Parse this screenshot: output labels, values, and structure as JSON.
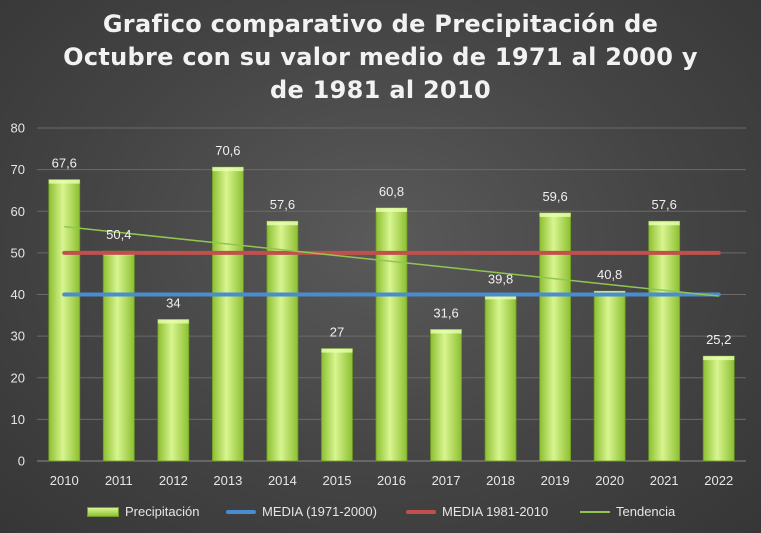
{
  "chart_data": {
    "type": "bar",
    "title_lines": [
      "Grafico comparativo de Precipitación de",
      "Octubre con su valor medio de 1971 al 2000 y",
      "de 1981 al 2010"
    ],
    "categories": [
      "2010",
      "2011",
      "2012",
      "2013",
      "2014",
      "2015",
      "2016",
      "2017",
      "2018",
      "2019",
      "2020",
      "2021",
      "2022"
    ],
    "series": [
      {
        "name": "Precipitación",
        "type": "bar",
        "values": [
          67.6,
          50.4,
          34,
          70.6,
          57.6,
          27,
          60.8,
          31.6,
          39.8,
          59.6,
          40.8,
          57.6,
          25.2
        ],
        "labels": [
          "67,6",
          "50,4",
          "34",
          "70,6",
          "57,6",
          "27",
          "60,8",
          "31,6",
          "39,8",
          "59,6",
          "40,8",
          "57,6",
          "25,2"
        ]
      },
      {
        "name": "MEDIA (1971-2000)",
        "type": "line",
        "value": 40
      },
      {
        "name": "MEDIA 1981-2010",
        "type": "line",
        "value": 50
      },
      {
        "name": "Tendencia",
        "type": "trendline",
        "start": 56.3,
        "end": 39.6
      }
    ],
    "ylim": [
      0,
      80
    ],
    "yticks": [
      "0",
      "10",
      "20",
      "30",
      "40",
      "50",
      "60",
      "70",
      "80"
    ],
    "grid": true,
    "legend": "bottom",
    "colors": {
      "bar_light": "#d8f590",
      "bar_dark": "#8cbf30",
      "media_1971_2000": "#4a8ccf",
      "media_1981_2010": "#c0504d",
      "tendencia": "#92c550",
      "grid": "#6a6a6a"
    }
  }
}
